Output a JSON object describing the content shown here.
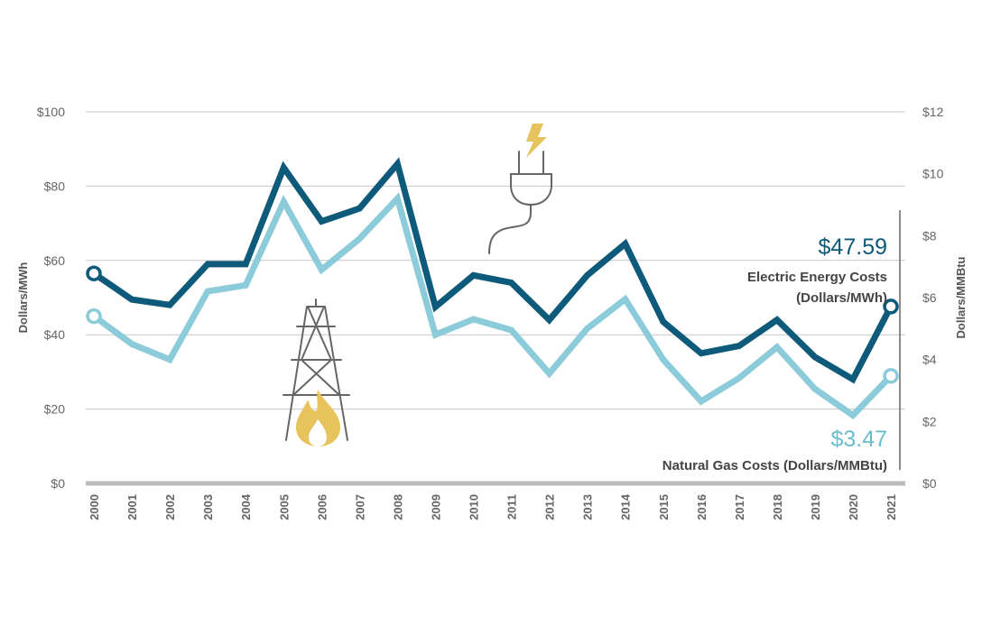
{
  "chart_data": {
    "type": "line",
    "categories": [
      "2000",
      "2001",
      "2002",
      "2003",
      "2004",
      "2005",
      "2006",
      "2007",
      "2008",
      "2009",
      "2010",
      "2011",
      "2012",
      "2013",
      "2014",
      "2015",
      "2016",
      "2017",
      "2018",
      "2019",
      "2020",
      "2021"
    ],
    "series": [
      {
        "name": "Electric Energy Costs (Dollars/MWh)",
        "axis": "left",
        "color": "#0e5a7a",
        "values": [
          56.5,
          49.5,
          48,
          59,
          59,
          85,
          70.5,
          74,
          86,
          47.5,
          56,
          54,
          44,
          56,
          64.5,
          43.5,
          35,
          37,
          44,
          34,
          28,
          47.59
        ]
      },
      {
        "name": "Natural Gas Costs (Dollars/MMBtu)",
        "axis": "right",
        "color": "#8ccbd9",
        "values": [
          5.4,
          4.5,
          4.0,
          6.2,
          6.4,
          9.1,
          6.9,
          7.9,
          9.2,
          4.8,
          5.3,
          4.95,
          3.55,
          5.0,
          5.95,
          4.0,
          2.65,
          3.4,
          4.4,
          3.05,
          2.2,
          3.47
        ]
      }
    ],
    "ylabel": "Dollars/MWh",
    "ylabel_right": "Dollars/MMBtu",
    "ylim": [
      0,
      100
    ],
    "ylim_right": [
      0,
      12
    ],
    "yticks": [
      "$0",
      "$20",
      "$40",
      "$60",
      "$80",
      "$100"
    ],
    "yticks_right": [
      "$0",
      "$2",
      "$4",
      "$6",
      "$8",
      "$10",
      "$12"
    ],
    "grid": true,
    "annotations": {
      "electric_value": "$47.59",
      "electric_label_line1": "Electric Energy Costs",
      "electric_label_line2": "(Dollars/MWh)",
      "gas_value": "$3.47",
      "gas_label": "Natural Gas Costs (Dollars/MMBtu)"
    },
    "icons": [
      "electric-plug-icon",
      "lightning-bolt-icon",
      "oil-derrick-icon",
      "gas-flame-icon"
    ],
    "colors": {
      "grid": "#c8c8c8",
      "baseline": "#bbbbbb",
      "tick_text": "#666666",
      "icon_gray": "#666666",
      "icon_gold": "#e6c35c"
    }
  }
}
